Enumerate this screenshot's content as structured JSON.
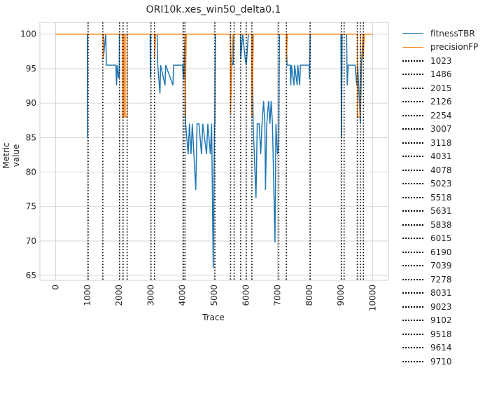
{
  "chart_data": {
    "type": "line",
    "title": "ORI10k.xes_win50_delta0.1",
    "xlabel": "Trace",
    "ylabel": "Metric value",
    "xlim": [
      -500,
      10500
    ],
    "ylim": [
      64.3,
      101.7
    ],
    "x_ticks": [
      0,
      1000,
      2000,
      3000,
      4000,
      5000,
      6000,
      7000,
      8000,
      9000,
      10000
    ],
    "y_ticks": [
      65,
      70,
      75,
      80,
      85,
      90,
      95,
      100
    ],
    "grid": true,
    "legend_position": "outside right",
    "series": [
      {
        "name": "fitnessTBR",
        "color": "#1f77b4",
        "points": [
          [
            0,
            100
          ],
          [
            1000,
            100
          ],
          [
            1000,
            85
          ],
          [
            1010,
            100
          ],
          [
            1500,
            100
          ],
          [
            1500,
            96.4
          ],
          [
            1580,
            100
          ],
          [
            1600,
            95.5
          ],
          [
            1900,
            95.5
          ],
          [
            1920,
            92.6
          ],
          [
            1940,
            95.5
          ],
          [
            1980,
            93.7
          ],
          [
            2000,
            93.7
          ],
          [
            2010,
            100
          ],
          [
            2980,
            100
          ],
          [
            2985,
            93.7
          ],
          [
            3000,
            100
          ],
          [
            3200,
            100
          ],
          [
            3220,
            95.5
          ],
          [
            3290,
            91.4
          ],
          [
            3310,
            95.5
          ],
          [
            3450,
            92.6
          ],
          [
            3470,
            95.5
          ],
          [
            3700,
            92.6
          ],
          [
            3720,
            95.5
          ],
          [
            4000,
            95.5
          ],
          [
            4040,
            93.5
          ],
          [
            4080,
            100
          ],
          [
            4100,
            87
          ],
          [
            4180,
            82.6
          ],
          [
            4220,
            87
          ],
          [
            4270,
            82.6
          ],
          [
            4310,
            87
          ],
          [
            4420,
            77.4
          ],
          [
            4460,
            87
          ],
          [
            4520,
            87
          ],
          [
            4600,
            82.6
          ],
          [
            4640,
            87
          ],
          [
            4760,
            82.6
          ],
          [
            4800,
            87
          ],
          [
            4880,
            82.6
          ],
          [
            4920,
            87
          ],
          [
            4970,
            66.1
          ],
          [
            5010,
            87
          ],
          [
            5023,
            87
          ],
          [
            5040,
            100
          ],
          [
            5510,
            100
          ],
          [
            5520,
            96.4
          ],
          [
            5600,
            95.5
          ],
          [
            5620,
            100
          ],
          [
            5830,
            100
          ],
          [
            5840,
            96.4
          ],
          [
            5900,
            100
          ],
          [
            5980,
            96.4
          ],
          [
            6015,
            95.5
          ],
          [
            6080,
            100
          ],
          [
            6200,
            100
          ],
          [
            6230,
            87
          ],
          [
            6320,
            76.2
          ],
          [
            6360,
            87
          ],
          [
            6420,
            87
          ],
          [
            6470,
            82.6
          ],
          [
            6510,
            87
          ],
          [
            6560,
            90.3
          ],
          [
            6600,
            87
          ],
          [
            6620,
            77.4
          ],
          [
            6660,
            87
          ],
          [
            6720,
            90.3
          ],
          [
            6760,
            87
          ],
          [
            6800,
            90.3
          ],
          [
            6840,
            87
          ],
          [
            6920,
            69.8
          ],
          [
            6950,
            87
          ],
          [
            7000,
            82.6
          ],
          [
            7039,
            84
          ],
          [
            7060,
            100
          ],
          [
            7278,
            100
          ],
          [
            7300,
            95.5
          ],
          [
            7400,
            95.5
          ],
          [
            7420,
            92.6
          ],
          [
            7440,
            95.5
          ],
          [
            7520,
            92.6
          ],
          [
            7540,
            95.5
          ],
          [
            7620,
            92.6
          ],
          [
            7640,
            95.5
          ],
          [
            7700,
            92.6
          ],
          [
            7720,
            95.5
          ],
          [
            8000,
            95.5
          ],
          [
            8010,
            93.5
          ],
          [
            8031,
            100
          ],
          [
            9000,
            100
          ],
          [
            9020,
            85
          ],
          [
            9040,
            100
          ],
          [
            9180,
            100
          ],
          [
            9200,
            92.6
          ],
          [
            9230,
            95.5
          ],
          [
            9450,
            95.5
          ],
          [
            9500,
            92.6
          ],
          [
            9530,
            95.5
          ],
          [
            9614,
            87
          ],
          [
            9650,
            95.5
          ],
          [
            9700,
            100
          ],
          [
            10000,
            100
          ]
        ]
      },
      {
        "name": "precisionFP",
        "color": "#ff7f0e",
        "points": [
          [
            0,
            100
          ],
          [
            1500,
            100
          ],
          [
            1500,
            96.4
          ],
          [
            1520,
            100
          ],
          [
            2100,
            100
          ],
          [
            2100,
            88
          ],
          [
            2150,
            88
          ],
          [
            2150,
            100
          ],
          [
            2190,
            100
          ],
          [
            2190,
            88
          ],
          [
            2254,
            88
          ],
          [
            2254,
            100
          ],
          [
            3118,
            100
          ],
          [
            3118,
            96.4
          ],
          [
            3150,
            100
          ],
          [
            4080,
            100
          ],
          [
            4080,
            88
          ],
          [
            4120,
            100
          ],
          [
            5518,
            100
          ],
          [
            5518,
            88.4
          ],
          [
            5560,
            96.4
          ],
          [
            5600,
            100
          ],
          [
            6190,
            100
          ],
          [
            6190,
            88
          ],
          [
            6240,
            100
          ],
          [
            7278,
            100
          ],
          [
            7278,
            96
          ],
          [
            7310,
            100
          ],
          [
            9518,
            100
          ],
          [
            9518,
            88
          ],
          [
            9600,
            88
          ],
          [
            9620,
            100
          ],
          [
            9700,
            100
          ],
          [
            9700,
            96.4
          ],
          [
            9740,
            100
          ],
          [
            10000,
            100
          ]
        ]
      }
    ],
    "vlines": {
      "style": "dotted",
      "color": "#000000",
      "values": [
        1023,
        1486,
        2015,
        2126,
        2254,
        3007,
        3118,
        4031,
        4078,
        5023,
        5518,
        5631,
        5838,
        6015,
        6190,
        7039,
        7278,
        8031,
        9023,
        9102,
        9518,
        9614,
        9710
      ]
    }
  }
}
